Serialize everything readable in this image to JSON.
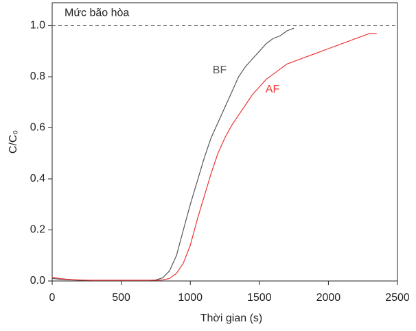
{
  "chart_data": {
    "type": "line",
    "xlabel": "Thời gian (s)",
    "ylabel": "C/C₀",
    "x": [
      0,
      50,
      100,
      150,
      200,
      250,
      300,
      350,
      400,
      450,
      500,
      550,
      600,
      650,
      700,
      750,
      800,
      850,
      900,
      950,
      1000,
      1050,
      1100,
      1150,
      1200,
      1250,
      1300,
      1350,
      1400,
      1450,
      1500,
      1550,
      1600,
      1650,
      1700,
      1750,
      1800,
      1850,
      1900,
      1950,
      2000,
      2050,
      2100,
      2150,
      2200,
      2250,
      2300,
      2350
    ],
    "series": [
      {
        "name": "BF",
        "color": "#555555",
        "values": [
          0.01,
          0.007,
          0.005,
          0.004,
          0.003,
          0.003,
          0.002,
          0.002,
          0.002,
          0.002,
          0.002,
          0.002,
          0.002,
          0.002,
          0.002,
          0.004,
          0.012,
          0.04,
          0.1,
          0.2,
          0.3,
          0.39,
          0.48,
          0.56,
          0.62,
          0.68,
          0.74,
          0.8,
          0.84,
          0.87,
          0.9,
          0.93,
          0.95,
          0.96,
          0.98,
          0.99,
          null,
          null,
          null,
          null,
          null,
          null,
          null,
          null,
          null,
          null,
          null,
          null
        ]
      },
      {
        "name": "AF",
        "color": "#ee3333",
        "values": [
          0.015,
          0.01,
          0.007,
          0.005,
          0.004,
          0.003,
          0.003,
          0.003,
          0.003,
          0.003,
          0.003,
          0.003,
          0.003,
          0.003,
          0.003,
          0.003,
          0.004,
          0.01,
          0.03,
          0.07,
          0.14,
          0.24,
          0.33,
          0.42,
          0.5,
          0.56,
          0.61,
          0.65,
          0.69,
          0.73,
          0.76,
          0.79,
          0.81,
          0.83,
          0.85,
          0.86,
          0.87,
          0.88,
          0.89,
          0.9,
          0.91,
          0.92,
          0.93,
          0.94,
          0.95,
          0.96,
          0.97,
          0.97
        ]
      }
    ],
    "annotations": [
      {
        "text": "Mức bão hòa",
        "y": 1.0
      }
    ],
    "xlim": [
      0,
      2500
    ],
    "xticks": [
      0,
      500,
      1000,
      1500,
      2000,
      2500
    ],
    "ylim": [
      0,
      1.09
    ],
    "yticks": [
      {
        "value": 0,
        "label": "0.0"
      },
      {
        "value": 0.2,
        "label": "0.2"
      },
      {
        "value": 0.4,
        "label": "0.4"
      },
      {
        "value": 0.6,
        "label": "0.6"
      },
      {
        "value": 0.8,
        "label": "0.8"
      },
      {
        "value": 1,
        "label": "1.0"
      }
    ]
  }
}
